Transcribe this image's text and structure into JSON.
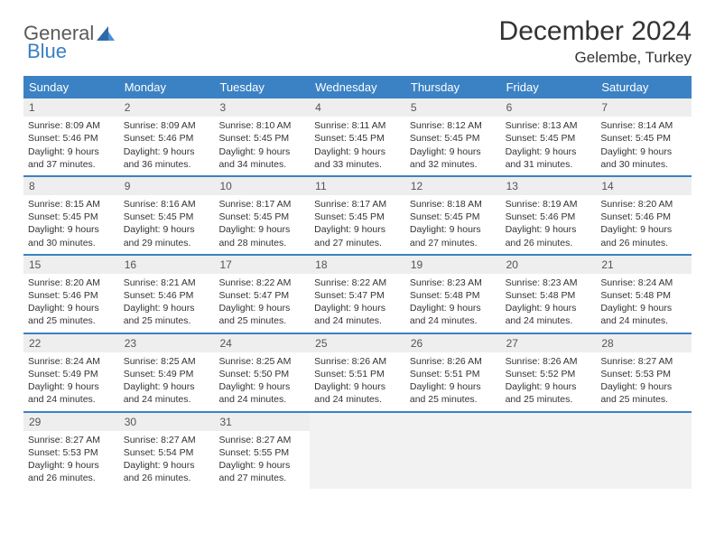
{
  "logo": {
    "word1": "General",
    "word2": "Blue"
  },
  "title": "December 2024",
  "location": "Gelembe, Turkey",
  "colors": {
    "header_bg": "#3b82c4",
    "header_text": "#ffffff",
    "daynum_bg": "#eeeeee",
    "border": "#3b82c4",
    "empty_bg": "#f2f2f2"
  },
  "weekdays": [
    "Sunday",
    "Monday",
    "Tuesday",
    "Wednesday",
    "Thursday",
    "Friday",
    "Saturday"
  ],
  "weeks": [
    [
      {
        "n": "1",
        "sr": "Sunrise: 8:09 AM",
        "ss": "Sunset: 5:46 PM",
        "d1": "Daylight: 9 hours",
        "d2": "and 37 minutes."
      },
      {
        "n": "2",
        "sr": "Sunrise: 8:09 AM",
        "ss": "Sunset: 5:46 PM",
        "d1": "Daylight: 9 hours",
        "d2": "and 36 minutes."
      },
      {
        "n": "3",
        "sr": "Sunrise: 8:10 AM",
        "ss": "Sunset: 5:45 PM",
        "d1": "Daylight: 9 hours",
        "d2": "and 34 minutes."
      },
      {
        "n": "4",
        "sr": "Sunrise: 8:11 AM",
        "ss": "Sunset: 5:45 PM",
        "d1": "Daylight: 9 hours",
        "d2": "and 33 minutes."
      },
      {
        "n": "5",
        "sr": "Sunrise: 8:12 AM",
        "ss": "Sunset: 5:45 PM",
        "d1": "Daylight: 9 hours",
        "d2": "and 32 minutes."
      },
      {
        "n": "6",
        "sr": "Sunrise: 8:13 AM",
        "ss": "Sunset: 5:45 PM",
        "d1": "Daylight: 9 hours",
        "d2": "and 31 minutes."
      },
      {
        "n": "7",
        "sr": "Sunrise: 8:14 AM",
        "ss": "Sunset: 5:45 PM",
        "d1": "Daylight: 9 hours",
        "d2": "and 30 minutes."
      }
    ],
    [
      {
        "n": "8",
        "sr": "Sunrise: 8:15 AM",
        "ss": "Sunset: 5:45 PM",
        "d1": "Daylight: 9 hours",
        "d2": "and 30 minutes."
      },
      {
        "n": "9",
        "sr": "Sunrise: 8:16 AM",
        "ss": "Sunset: 5:45 PM",
        "d1": "Daylight: 9 hours",
        "d2": "and 29 minutes."
      },
      {
        "n": "10",
        "sr": "Sunrise: 8:17 AM",
        "ss": "Sunset: 5:45 PM",
        "d1": "Daylight: 9 hours",
        "d2": "and 28 minutes."
      },
      {
        "n": "11",
        "sr": "Sunrise: 8:17 AM",
        "ss": "Sunset: 5:45 PM",
        "d1": "Daylight: 9 hours",
        "d2": "and 27 minutes."
      },
      {
        "n": "12",
        "sr": "Sunrise: 8:18 AM",
        "ss": "Sunset: 5:45 PM",
        "d1": "Daylight: 9 hours",
        "d2": "and 27 minutes."
      },
      {
        "n": "13",
        "sr": "Sunrise: 8:19 AM",
        "ss": "Sunset: 5:46 PM",
        "d1": "Daylight: 9 hours",
        "d2": "and 26 minutes."
      },
      {
        "n": "14",
        "sr": "Sunrise: 8:20 AM",
        "ss": "Sunset: 5:46 PM",
        "d1": "Daylight: 9 hours",
        "d2": "and 26 minutes."
      }
    ],
    [
      {
        "n": "15",
        "sr": "Sunrise: 8:20 AM",
        "ss": "Sunset: 5:46 PM",
        "d1": "Daylight: 9 hours",
        "d2": "and 25 minutes."
      },
      {
        "n": "16",
        "sr": "Sunrise: 8:21 AM",
        "ss": "Sunset: 5:46 PM",
        "d1": "Daylight: 9 hours",
        "d2": "and 25 minutes."
      },
      {
        "n": "17",
        "sr": "Sunrise: 8:22 AM",
        "ss": "Sunset: 5:47 PM",
        "d1": "Daylight: 9 hours",
        "d2": "and 25 minutes."
      },
      {
        "n": "18",
        "sr": "Sunrise: 8:22 AM",
        "ss": "Sunset: 5:47 PM",
        "d1": "Daylight: 9 hours",
        "d2": "and 24 minutes."
      },
      {
        "n": "19",
        "sr": "Sunrise: 8:23 AM",
        "ss": "Sunset: 5:48 PM",
        "d1": "Daylight: 9 hours",
        "d2": "and 24 minutes."
      },
      {
        "n": "20",
        "sr": "Sunrise: 8:23 AM",
        "ss": "Sunset: 5:48 PM",
        "d1": "Daylight: 9 hours",
        "d2": "and 24 minutes."
      },
      {
        "n": "21",
        "sr": "Sunrise: 8:24 AM",
        "ss": "Sunset: 5:48 PM",
        "d1": "Daylight: 9 hours",
        "d2": "and 24 minutes."
      }
    ],
    [
      {
        "n": "22",
        "sr": "Sunrise: 8:24 AM",
        "ss": "Sunset: 5:49 PM",
        "d1": "Daylight: 9 hours",
        "d2": "and 24 minutes."
      },
      {
        "n": "23",
        "sr": "Sunrise: 8:25 AM",
        "ss": "Sunset: 5:49 PM",
        "d1": "Daylight: 9 hours",
        "d2": "and 24 minutes."
      },
      {
        "n": "24",
        "sr": "Sunrise: 8:25 AM",
        "ss": "Sunset: 5:50 PM",
        "d1": "Daylight: 9 hours",
        "d2": "and 24 minutes."
      },
      {
        "n": "25",
        "sr": "Sunrise: 8:26 AM",
        "ss": "Sunset: 5:51 PM",
        "d1": "Daylight: 9 hours",
        "d2": "and 24 minutes."
      },
      {
        "n": "26",
        "sr": "Sunrise: 8:26 AM",
        "ss": "Sunset: 5:51 PM",
        "d1": "Daylight: 9 hours",
        "d2": "and 25 minutes."
      },
      {
        "n": "27",
        "sr": "Sunrise: 8:26 AM",
        "ss": "Sunset: 5:52 PM",
        "d1": "Daylight: 9 hours",
        "d2": "and 25 minutes."
      },
      {
        "n": "28",
        "sr": "Sunrise: 8:27 AM",
        "ss": "Sunset: 5:53 PM",
        "d1": "Daylight: 9 hours",
        "d2": "and 25 minutes."
      }
    ],
    [
      {
        "n": "29",
        "sr": "Sunrise: 8:27 AM",
        "ss": "Sunset: 5:53 PM",
        "d1": "Daylight: 9 hours",
        "d2": "and 26 minutes."
      },
      {
        "n": "30",
        "sr": "Sunrise: 8:27 AM",
        "ss": "Sunset: 5:54 PM",
        "d1": "Daylight: 9 hours",
        "d2": "and 26 minutes."
      },
      {
        "n": "31",
        "sr": "Sunrise: 8:27 AM",
        "ss": "Sunset: 5:55 PM",
        "d1": "Daylight: 9 hours",
        "d2": "and 27 minutes."
      },
      null,
      null,
      null,
      null
    ]
  ]
}
